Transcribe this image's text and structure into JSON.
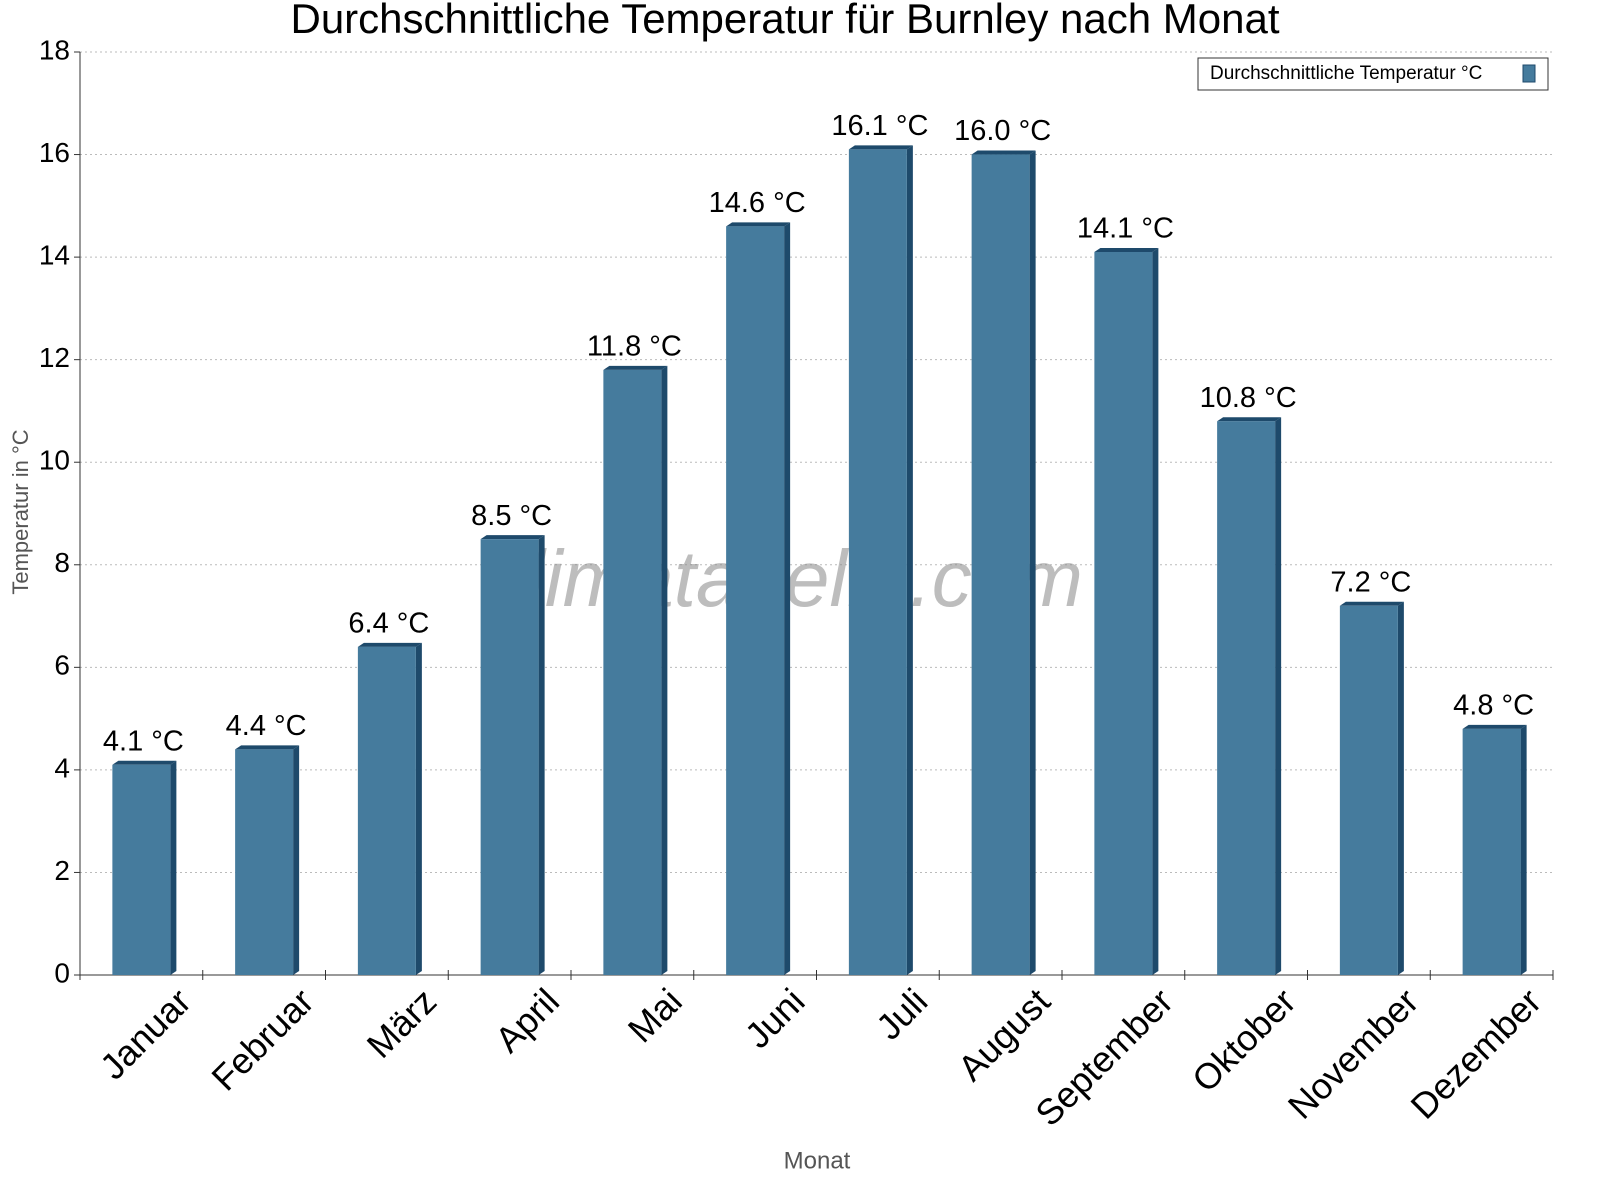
{
  "chart_data": {
    "type": "bar",
    "title": "Durchschnittliche Temperatur für Burnley nach Monat",
    "watermark": "klimatabelle.com",
    "x_label": "Monat",
    "y_label": "Temperatur in °C",
    "categories": [
      "Januar",
      "Februar",
      "März",
      "April",
      "Mai",
      "Juni",
      "Juli",
      "August",
      "September",
      "Oktober",
      "November",
      "Dezember"
    ],
    "series": [
      {
        "name": "Durchschnittliche Temperatur °C",
        "color": "#457b9d",
        "values": [
          4.1,
          4.4,
          6.4,
          8.5,
          11.8,
          14.6,
          16.1,
          16.0,
          14.1,
          10.8,
          7.2,
          4.8
        ],
        "value_labels": [
          "4.1 °C",
          "4.4 °C",
          "6.4 °C",
          "8.5 °C",
          "11.8 °C",
          "14.6 °C",
          "16.1 °C",
          "16.0 °C",
          "14.1 °C",
          "10.8 °C",
          "7.2 °C",
          "4.8 °C"
        ]
      }
    ],
    "ylim": [
      0,
      18
    ],
    "yticks": [
      0,
      2,
      4,
      6,
      8,
      10,
      12,
      14,
      16,
      18
    ],
    "grid": true,
    "legend": "top-right"
  }
}
